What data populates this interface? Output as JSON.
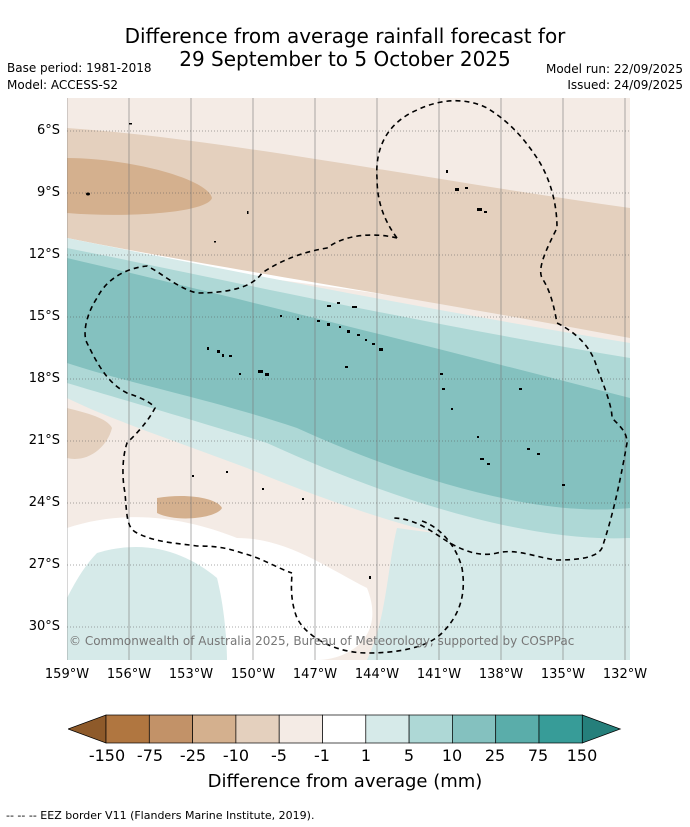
{
  "title_line1": "Difference from average rainfall forecast for",
  "title_line2": "29 September to 5 October 2025",
  "meta": {
    "base_period": "Base period: 1981-2018",
    "model": "Model: ACCESS-S2",
    "model_run": "Model run: 22/09/2025",
    "issued": "Issued: 24/09/2025"
  },
  "lat_labels": [
    "6°S",
    "9°S",
    "12°S",
    "15°S",
    "18°S",
    "21°S",
    "24°S",
    "27°S",
    "30°S"
  ],
  "lon_labels": [
    "159°W",
    "156°W",
    "153°W",
    "150°W",
    "147°W",
    "144°W",
    "141°W",
    "138°W",
    "135°W",
    "132°W"
  ],
  "copyright": "© Commonwealth of Australia 2025, Bureau of Meteorology, supported by COSPPac",
  "colorbar": {
    "labels": [
      "-150",
      "-75",
      "-25",
      "-10",
      "-5",
      "-1",
      "1",
      "5",
      "10",
      "25",
      "75",
      "150"
    ],
    "colors": [
      "#8e5a2a",
      "#b07640",
      "#c29268",
      "#d4b08e",
      "#e4d0be",
      "#f4ebe5",
      "#ffffff",
      "#d6eae9",
      "#aed8d6",
      "#84c1bf",
      "#5aadaa",
      "#379c98",
      "#257f7b"
    ],
    "title": "Difference from average (mm)"
  },
  "footnote": "--  --  -- EEZ border V11 (Flanders Marine Institute, 2019)."
}
